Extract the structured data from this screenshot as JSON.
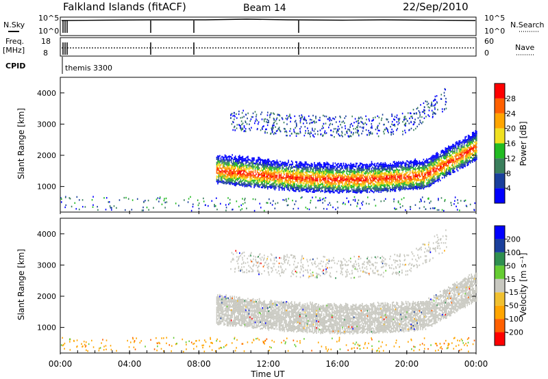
{
  "header": {
    "site": "Falkland Islands (fitACF)",
    "beam": "Beam 14",
    "date": "22/Sep/2010"
  },
  "aux": {
    "nsky_label": "N.Sky",
    "nsearch_label": "N.Search",
    "noise_ticks_left": [
      "10^5",
      "10^0"
    ],
    "noise_ticks_right": [
      "10^5",
      "10^0"
    ],
    "freq_label": "Freq.",
    "freq_unit": "[MHz]",
    "freq_ticks": [
      "18",
      "8"
    ],
    "nave_label": "Nave",
    "nave_ticks": [
      "60",
      "0"
    ],
    "cpid_label": "CPID",
    "cpid_value": "themis 3300"
  },
  "colors": {
    "power_scale": [
      "#0000ff",
      "#1a3f9c",
      "#3a7f5c",
      "#22bb22",
      "#f0e020",
      "#ffa500",
      "#ff6000",
      "#ff0000"
    ],
    "velocity_scale": [
      "#ff0000",
      "#ff6000",
      "#ffa500",
      "#f0c030",
      "#c8c8c0",
      "#66cc33",
      "#2f8f4f",
      "#1a3f9c",
      "#0000ff"
    ],
    "ground_scatter": "#c8c8c0"
  },
  "chart_data": [
    {
      "type": "heatmap",
      "panel": "power",
      "ylabel": "Slant Range [km]",
      "yticks": [
        "1000",
        "2000",
        "3000",
        "4000"
      ],
      "ylim": [
        180,
        4500
      ],
      "xlim_hours": [
        0,
        24
      ],
      "colorbar_label": "Power [dB]",
      "colorbar_ticks": [
        "4",
        "8",
        "12",
        "16",
        "20",
        "24",
        "28"
      ],
      "colorbar_range": [
        0,
        30
      ]
    },
    {
      "type": "heatmap",
      "panel": "velocity",
      "ylabel": "Slant Range [km]",
      "yticks": [
        "1000",
        "2000",
        "3000",
        "4000"
      ],
      "ylim": [
        180,
        4500
      ],
      "xlim_hours": [
        0,
        24
      ],
      "colorbar_label": "Velocity [m s⁻¹]",
      "colorbar_ticks": [
        "200",
        "100",
        "50",
        "15",
        "-15",
        "-50",
        "-100",
        "-200"
      ],
      "colorbar_range": [
        -250,
        250
      ]
    }
  ],
  "xaxis": {
    "label": "Time UT",
    "ticks": [
      "00:00",
      "04:00",
      "08:00",
      "12:00",
      "16:00",
      "20:00",
      "00:00"
    ]
  }
}
